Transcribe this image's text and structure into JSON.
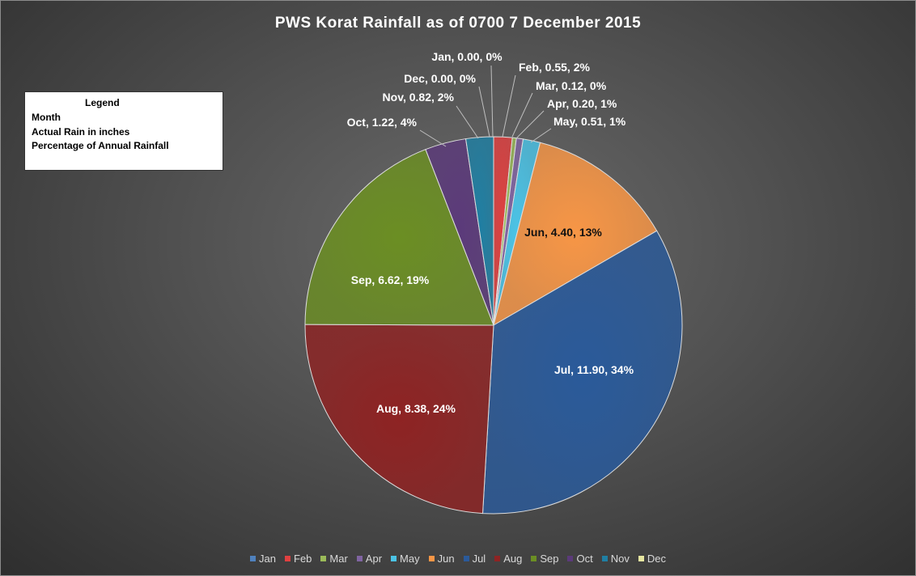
{
  "chart_data": {
    "type": "pie",
    "title": "PWS Korat Rainfall as of 0700 7 December 2015",
    "categories": [
      "Jan",
      "Feb",
      "Mar",
      "Apr",
      "May",
      "Jun",
      "Jul",
      "Aug",
      "Sep",
      "Oct",
      "Nov",
      "Dec"
    ],
    "values": [
      0.0,
      0.55,
      0.12,
      0.2,
      0.51,
      4.4,
      11.9,
      8.38,
      6.62,
      1.22,
      0.82,
      0.0
    ],
    "percent_labels": [
      "0%",
      "2%",
      "0%",
      "1%",
      "1%",
      "13%",
      "34%",
      "24%",
      "19%",
      "4%",
      "2%",
      "0%"
    ],
    "data_labels": [
      "Jan, 0.00, 0%",
      "Feb, 0.55, 2%",
      "Mar, 0.12, 0%",
      "Apr, 0.20, 1%",
      "May, 0.51, 1%",
      "Jun, 4.40, 13%",
      "Jul, 11.90, 34%",
      "Aug, 8.38, 24%",
      "Sep, 6.62, 19%",
      "Oct, 1.22, 4%",
      "Nov, 0.82, 2%",
      "Dec, 0.00, 0%"
    ],
    "colors": [
      "#4f81bd",
      "#e04040",
      "#9bbb59",
      "#8064a2",
      "#4bc3e6",
      "#f79646",
      "#2a5a9a",
      "#8e2323",
      "#6b8e23",
      "#5b3a7a",
      "#1f7fa3",
      "#e6e6a0"
    ],
    "legend_position": "bottom"
  },
  "legend_box": {
    "title": "Legend",
    "lines": [
      "Month",
      "Actual Rain in inches",
      "Percentage of Annual Rainfall"
    ]
  }
}
